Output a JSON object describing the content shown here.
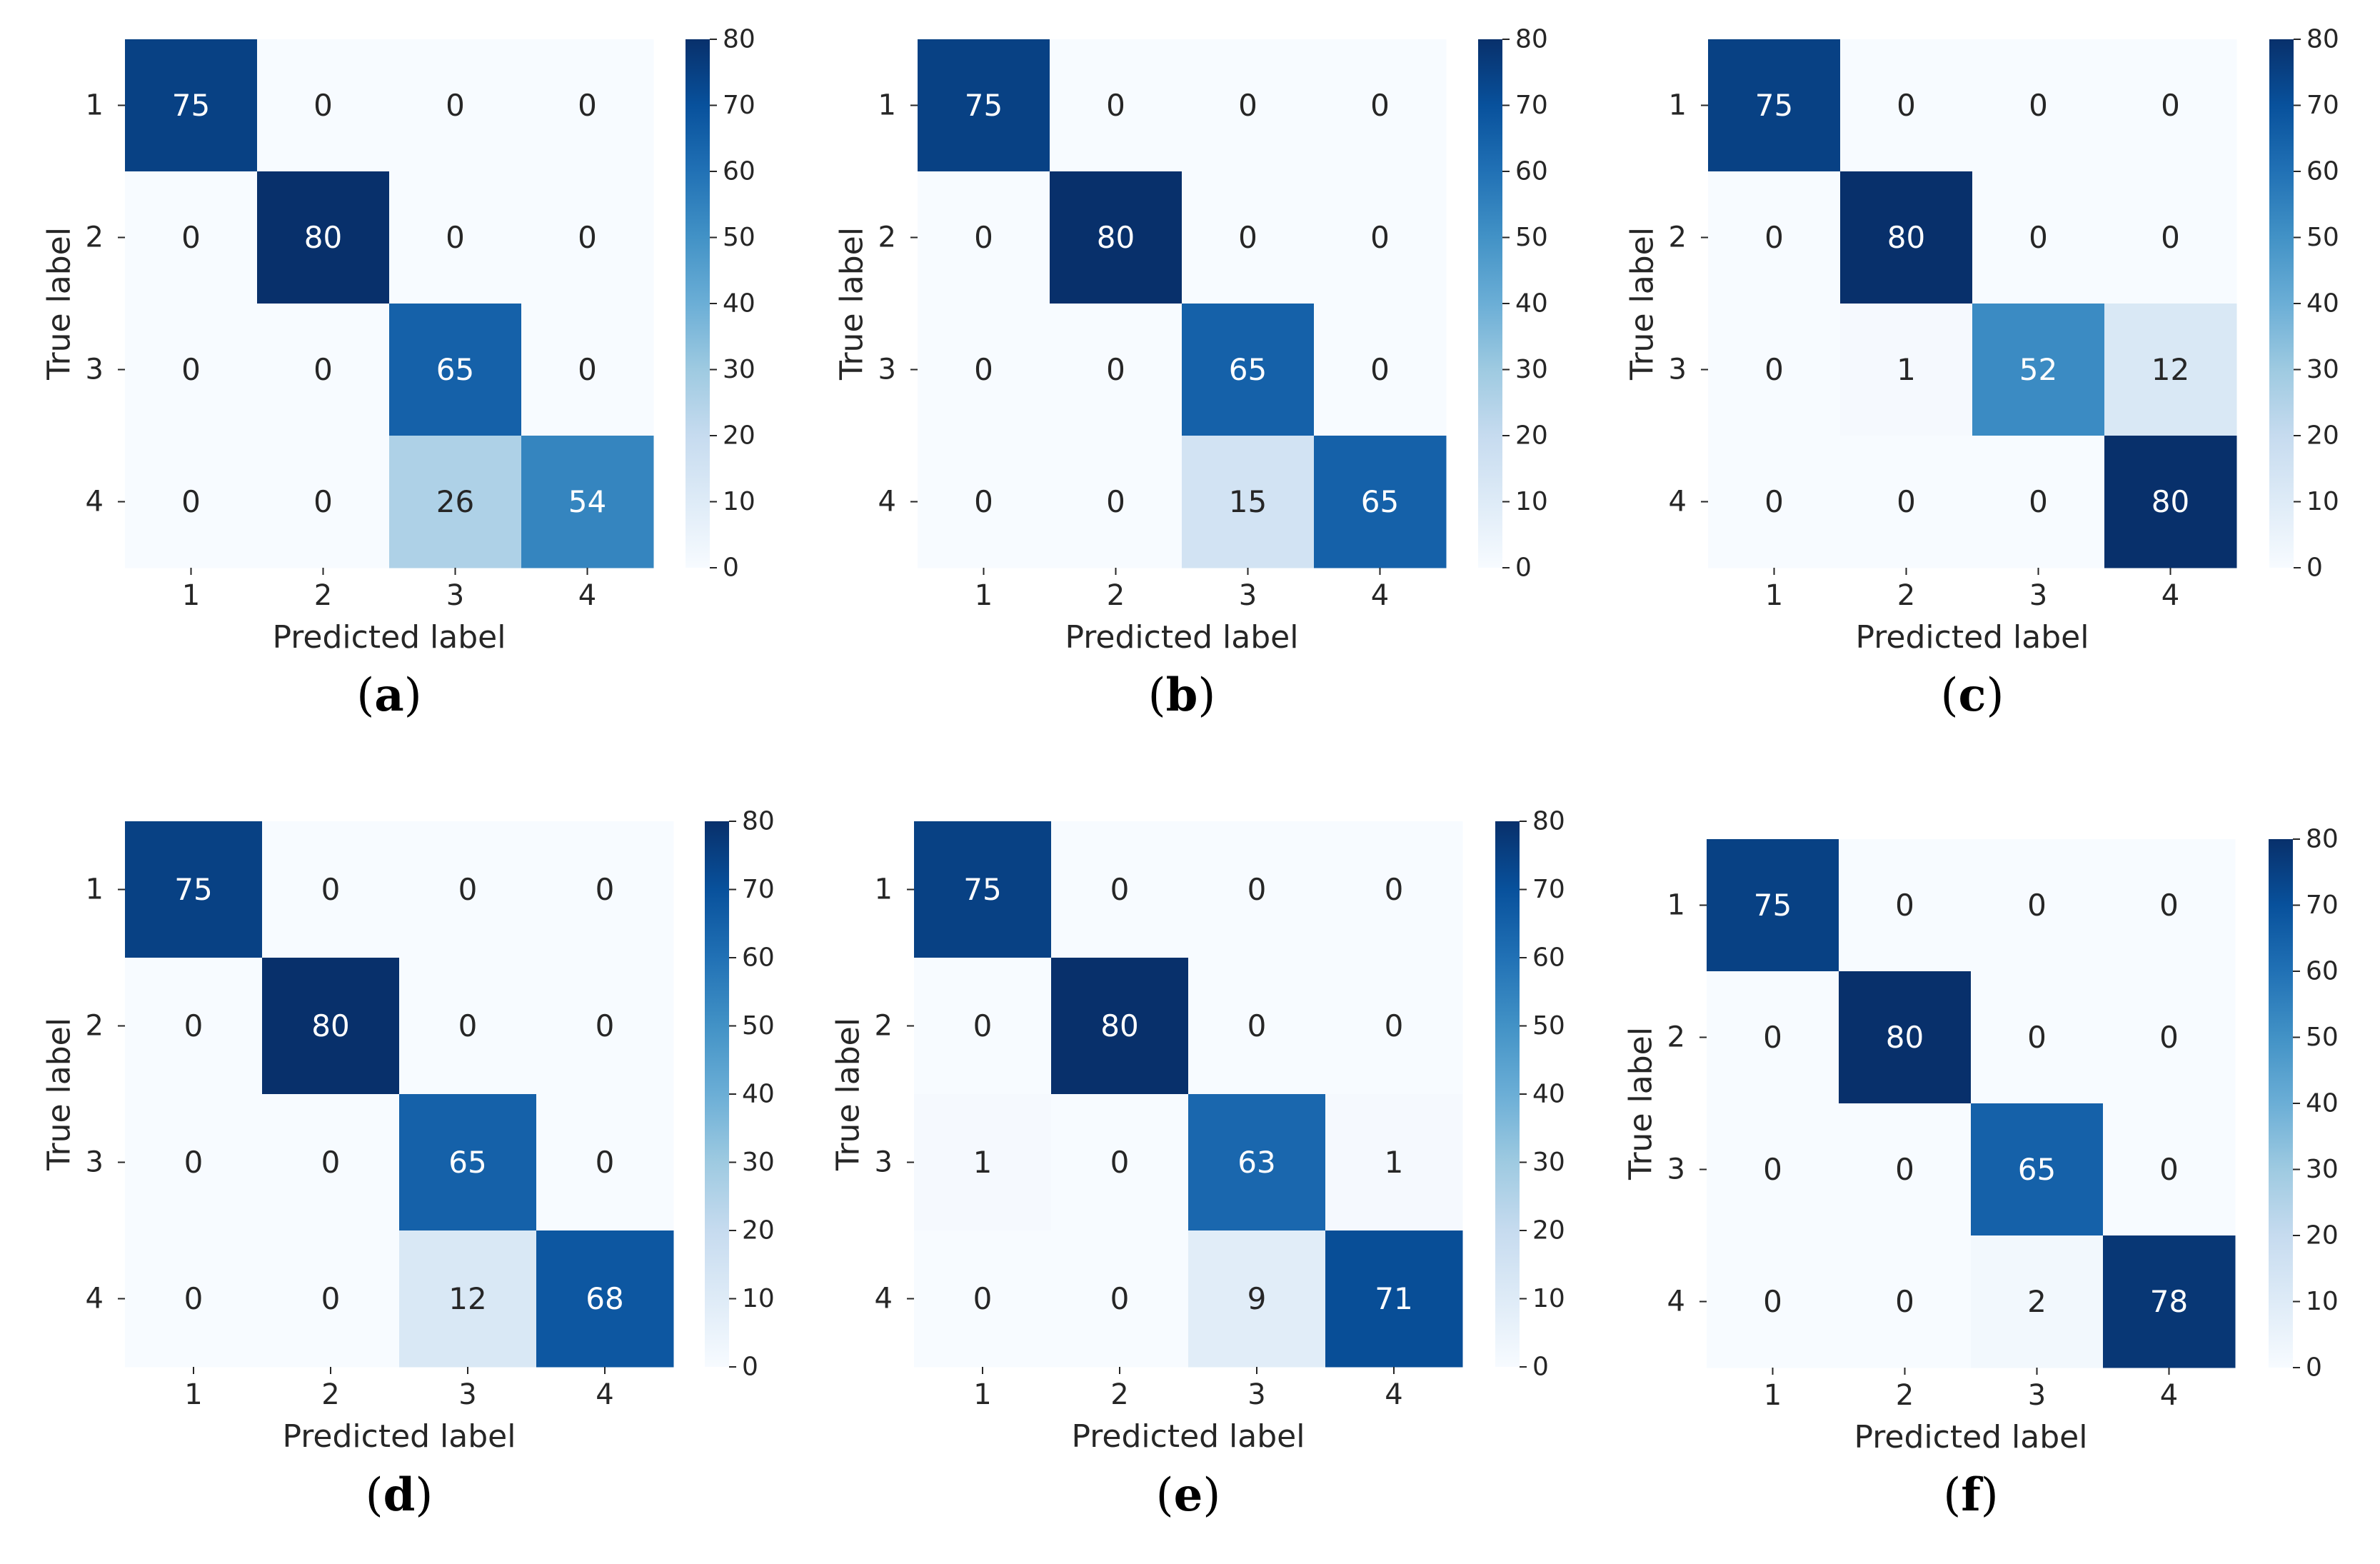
{
  "chart_data": [
    {
      "type": "heatmap",
      "panel_label": "a",
      "xlabel": "Predicted label",
      "ylabel": "True label",
      "x_ticks": [
        "1",
        "2",
        "3",
        "4"
      ],
      "y_ticks": [
        "1",
        "2",
        "3",
        "4"
      ],
      "matrix": [
        [
          75,
          0,
          0,
          0
        ],
        [
          0,
          80,
          0,
          0
        ],
        [
          0,
          0,
          65,
          0
        ],
        [
          0,
          0,
          26,
          54
        ]
      ],
      "colorbar": {
        "min": 0,
        "max": 80,
        "ticks": [
          "0",
          "10",
          "20",
          "30",
          "40",
          "50",
          "60",
          "70",
          "80"
        ]
      }
    },
    {
      "type": "heatmap",
      "panel_label": "b",
      "xlabel": "Predicted label",
      "ylabel": "True label",
      "x_ticks": [
        "1",
        "2",
        "3",
        "4"
      ],
      "y_ticks": [
        "1",
        "2",
        "3",
        "4"
      ],
      "matrix": [
        [
          75,
          0,
          0,
          0
        ],
        [
          0,
          80,
          0,
          0
        ],
        [
          0,
          0,
          65,
          0
        ],
        [
          0,
          0,
          15,
          65
        ]
      ],
      "colorbar": {
        "min": 0,
        "max": 80,
        "ticks": [
          "0",
          "10",
          "20",
          "30",
          "40",
          "50",
          "60",
          "70",
          "80"
        ]
      }
    },
    {
      "type": "heatmap",
      "panel_label": "c",
      "xlabel": "Predicted label",
      "ylabel": "True label",
      "x_ticks": [
        "1",
        "2",
        "3",
        "4"
      ],
      "y_ticks": [
        "1",
        "2",
        "3",
        "4"
      ],
      "matrix": [
        [
          75,
          0,
          0,
          0
        ],
        [
          0,
          80,
          0,
          0
        ],
        [
          0,
          1,
          52,
          12
        ],
        [
          0,
          0,
          0,
          80
        ]
      ],
      "colorbar": {
        "min": 0,
        "max": 80,
        "ticks": [
          "0",
          "10",
          "20",
          "30",
          "40",
          "50",
          "60",
          "70",
          "80"
        ]
      }
    },
    {
      "type": "heatmap",
      "panel_label": "d",
      "xlabel": "Predicted label",
      "ylabel": "True label",
      "x_ticks": [
        "1",
        "2",
        "3",
        "4"
      ],
      "y_ticks": [
        "1",
        "2",
        "3",
        "4"
      ],
      "matrix": [
        [
          75,
          0,
          0,
          0
        ],
        [
          0,
          80,
          0,
          0
        ],
        [
          0,
          0,
          65,
          0
        ],
        [
          0,
          0,
          12,
          68
        ]
      ],
      "colorbar": {
        "min": 0,
        "max": 80,
        "ticks": [
          "0",
          "10",
          "20",
          "30",
          "40",
          "50",
          "60",
          "70",
          "80"
        ]
      }
    },
    {
      "type": "heatmap",
      "panel_label": "e",
      "xlabel": "Predicted label",
      "ylabel": "True label",
      "x_ticks": [
        "1",
        "2",
        "3",
        "4"
      ],
      "y_ticks": [
        "1",
        "2",
        "3",
        "4"
      ],
      "matrix": [
        [
          75,
          0,
          0,
          0
        ],
        [
          0,
          80,
          0,
          0
        ],
        [
          1,
          0,
          63,
          1
        ],
        [
          0,
          0,
          9,
          71
        ]
      ],
      "colorbar": {
        "min": 0,
        "max": 80,
        "ticks": [
          "0",
          "10",
          "20",
          "30",
          "40",
          "50",
          "60",
          "70",
          "80"
        ]
      }
    },
    {
      "type": "heatmap",
      "panel_label": "f",
      "xlabel": "Predicted label",
      "ylabel": "True label",
      "x_ticks": [
        "1",
        "2",
        "3",
        "4"
      ],
      "y_ticks": [
        "1",
        "2",
        "3",
        "4"
      ],
      "matrix": [
        [
          75,
          0,
          0,
          0
        ],
        [
          0,
          80,
          0,
          0
        ],
        [
          0,
          0,
          65,
          0
        ],
        [
          0,
          0,
          2,
          78
        ]
      ],
      "colorbar": {
        "min": 0,
        "max": 80,
        "ticks": [
          "0",
          "10",
          "20",
          "30",
          "40",
          "50",
          "60",
          "70",
          "80"
        ]
      }
    }
  ],
  "colors": {
    "colormap": [
      "#f7fbff",
      "#deebf7",
      "#c6dbef",
      "#9ecae1",
      "#6baed6",
      "#4292c6",
      "#2171b5",
      "#08519c",
      "#08306b"
    ],
    "text_dark": "#262626",
    "text_light": "#ffffff",
    "caption": "#000000"
  }
}
